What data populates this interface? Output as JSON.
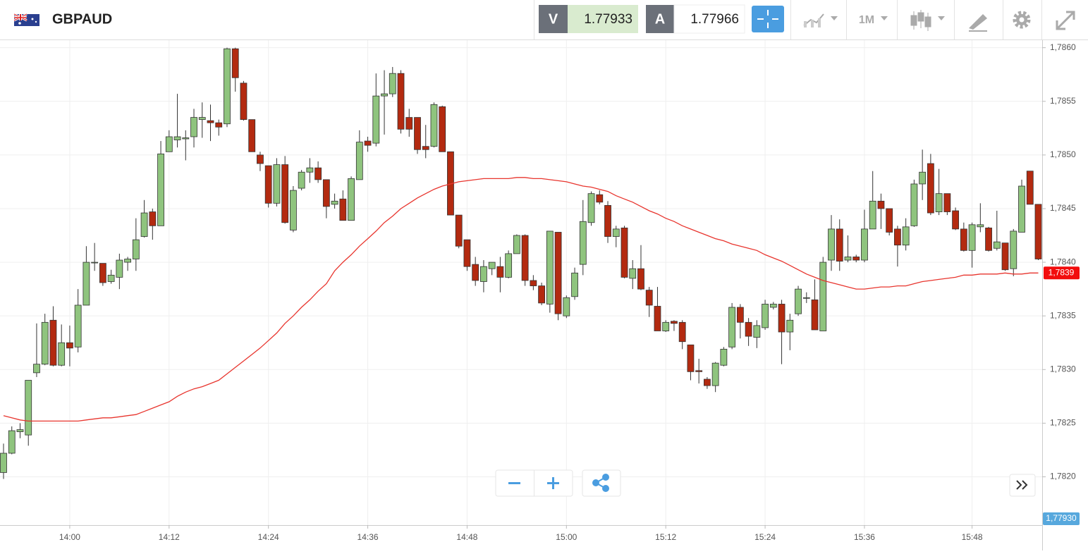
{
  "header": {
    "symbol": "GBPAUD",
    "sell_label": "V",
    "sell_price": "1.77933",
    "buy_label": "A",
    "buy_price": "1.77966",
    "timeframe": "1M"
  },
  "chart_data": {
    "type": "candlestick",
    "categories": [
      null,
      null,
      null,
      null,
      null,
      null,
      null,
      null,
      "14:00",
      null,
      null,
      null,
      null,
      null,
      null,
      null,
      null,
      null,
      null,
      null,
      "14:12",
      null,
      null,
      null,
      null,
      null,
      null,
      null,
      null,
      null,
      null,
      null,
      "14:24",
      null,
      null,
      null,
      null,
      null,
      null,
      null,
      null,
      null,
      null,
      null,
      "14:36",
      null,
      null,
      null,
      null,
      null,
      null,
      null,
      null,
      null,
      null,
      null,
      "14:48",
      null,
      null,
      null,
      null,
      null,
      null,
      null,
      null,
      null,
      null,
      null,
      "15:00",
      null,
      null,
      null,
      null,
      null,
      null,
      null,
      null,
      null,
      null,
      null,
      "15:12",
      null,
      null,
      null,
      null,
      null,
      null,
      null,
      null,
      null,
      null,
      null,
      "15:24",
      null,
      null,
      null,
      null,
      null,
      null,
      null,
      null,
      null,
      null,
      null,
      "15:36",
      null,
      null,
      null,
      null,
      null,
      null,
      null,
      null,
      null,
      null,
      null,
      null,
      "15:48",
      null,
      null,
      null,
      null,
      null,
      null,
      null,
      null
    ],
    "open": [
      1.78204,
      1.78222,
      1.78242,
      1.78239,
      1.78297,
      1.78305,
      1.78346,
      1.78304,
      1.78325,
      1.78321,
      1.7836,
      1.784,
      1.78399,
      1.78382,
      1.78386,
      1.784,
      1.78403,
      1.78424,
      1.78447,
      1.78434,
      1.78503,
      1.78514,
      1.78515,
      1.78517,
      1.78533,
      1.78532,
      1.7853,
      1.78529,
      1.78599,
      1.78567,
      1.78533,
      1.785,
      1.7849,
      1.78455,
      1.78491,
      1.7843,
      1.78469,
      1.78484,
      1.78488,
      1.78477,
      1.78454,
      1.78459,
      1.78439,
      1.78477,
      1.78513,
      1.78511,
      1.78555,
      1.78557,
      1.78576,
      1.78535,
      1.78535,
      1.78508,
      1.78508,
      1.78545,
      1.78503,
      1.78444,
      1.78421,
      1.78398,
      1.78382,
      1.78394,
      1.78396,
      1.78386,
      1.78408,
      1.78425,
      1.78383,
      1.78378,
      1.78361,
      1.78428,
      1.7835,
      1.78368,
      1.78398,
      1.78437,
      1.78463,
      1.78453,
      1.78424,
      1.78432,
      1.78385,
      1.78394,
      1.78374,
      1.78359,
      1.78336,
      1.78345,
      1.78344,
      1.78323,
      1.78299,
      1.78291,
      1.78285,
      1.78304,
      1.78321,
      1.78358,
      1.78344,
      1.7833,
      1.78339,
      1.78358,
      1.78361,
      1.78335,
      1.78352,
      1.78367,
      1.78365,
      1.78336,
      1.78402,
      1.78431,
      1.78402,
      1.78405,
      1.78402,
      1.78431,
      1.78457,
      1.7845,
      1.78431,
      1.78416,
      1.78434,
      1.78473,
      1.78492,
      1.78447,
      1.78464,
      1.78448,
      1.78431,
      1.78411,
      1.78433,
      1.78432,
      1.78413,
      1.78418,
      1.78394,
      1.78428,
      1.78485,
      1.78454
    ],
    "high": [
      1.78231,
      1.78247,
      1.7825,
      1.7829,
      1.78343,
      1.78352,
      1.78359,
      1.78342,
      1.78341,
      1.78375,
      1.78415,
      1.78418,
      1.78399,
      1.78393,
      1.78408,
      1.78405,
      1.78441,
      1.78458,
      1.7845,
      1.78513,
      1.78523,
      1.78557,
      1.78523,
      1.78543,
      1.78549,
      1.78547,
      1.78533,
      1.786,
      1.786,
      1.78569,
      1.78533,
      1.78503,
      1.7849,
      1.78497,
      1.78499,
      1.78471,
      1.78486,
      1.78497,
      1.78494,
      1.78477,
      1.78464,
      1.78467,
      1.7848,
      1.78523,
      1.78517,
      1.78576,
      1.78579,
      1.78582,
      1.78579,
      1.78543,
      1.78535,
      1.78528,
      1.78549,
      1.78546,
      1.78503,
      1.78444,
      1.78421,
      1.78405,
      1.78402,
      1.784,
      1.78405,
      1.78411,
      1.78426,
      1.78426,
      1.78388,
      1.78381,
      1.78429,
      1.78428,
      1.78369,
      1.78395,
      1.78458,
      1.78466,
      1.78467,
      1.78457,
      1.78434,
      1.78434,
      1.78402,
      1.78416,
      1.78377,
      1.78377,
      1.78346,
      1.78346,
      1.78346,
      1.78323,
      1.7831,
      1.78293,
      1.78307,
      1.78321,
      1.78362,
      1.78361,
      1.78348,
      1.78346,
      1.78365,
      1.78363,
      1.78365,
      1.78352,
      1.78378,
      1.78372,
      1.78384,
      1.78405,
      1.78444,
      1.7844,
      1.78425,
      1.78407,
      1.78449,
      1.78485,
      1.78464,
      1.7845,
      1.78434,
      1.78441,
      1.78477,
      1.78505,
      1.78501,
      1.78487,
      1.78464,
      1.78451,
      1.78437,
      1.78437,
      1.78455,
      1.78433,
      1.78448,
      1.78418,
      1.78431,
      1.78477,
      1.78485,
      1.78454
    ],
    "low": [
      1.78198,
      1.78221,
      1.78236,
      1.78229,
      1.78293,
      1.78304,
      1.78303,
      1.78303,
      1.78303,
      1.78316,
      1.7836,
      1.78392,
      1.78378,
      1.7838,
      1.78375,
      1.78392,
      1.78392,
      1.78423,
      1.78421,
      1.78434,
      1.78503,
      1.78507,
      1.78495,
      1.78507,
      1.78516,
      1.78513,
      1.78518,
      1.78526,
      1.78559,
      1.78532,
      1.78503,
      1.78485,
      1.78451,
      1.78452,
      1.78436,
      1.78428,
      1.78467,
      1.78474,
      1.78474,
      1.78441,
      1.7845,
      1.78439,
      1.78439,
      1.78477,
      1.78503,
      1.78508,
      1.78519,
      1.78554,
      1.7852,
      1.78517,
      1.78501,
      1.78497,
      1.78507,
      1.78503,
      1.78444,
      1.78413,
      1.78392,
      1.78378,
      1.78372,
      1.78388,
      1.78372,
      1.78385,
      1.78408,
      1.78378,
      1.78374,
      1.7836,
      1.78353,
      1.78346,
      1.78348,
      1.78365,
      1.78388,
      1.78434,
      1.78454,
      1.78418,
      1.78414,
      1.78385,
      1.78375,
      1.78374,
      1.78349,
      1.78336,
      1.78335,
      1.78336,
      1.78319,
      1.7829,
      1.78287,
      1.78282,
      1.78279,
      1.78303,
      1.78319,
      1.78329,
      1.78322,
      1.7832,
      1.78337,
      1.78356,
      1.78305,
      1.78318,
      1.7835,
      1.78362,
      1.78337,
      1.78336,
      1.78392,
      1.78392,
      1.784,
      1.784,
      1.784,
      1.78431,
      1.78431,
      1.78425,
      1.78396,
      1.78411,
      1.78433,
      1.78458,
      1.78444,
      1.78444,
      1.78444,
      1.7843,
      1.7841,
      1.78395,
      1.78428,
      1.7841,
      1.78411,
      1.78392,
      1.78387,
      1.78428,
      1.78454,
      1.78402
    ],
    "close": [
      1.78222,
      1.78243,
      1.78244,
      1.7829,
      1.78305,
      1.78344,
      1.78304,
      1.78325,
      1.7832,
      1.7836,
      1.784,
      1.784,
      1.78381,
      1.78388,
      1.78402,
      1.78403,
      1.78421,
      1.78446,
      1.78434,
      1.78501,
      1.78517,
      1.78517,
      1.78516,
      1.78535,
      1.78535,
      1.7853,
      1.78526,
      1.78599,
      1.78572,
      1.78533,
      1.78503,
      1.78492,
      1.78455,
      1.78491,
      1.78437,
      1.78467,
      1.78484,
      1.78488,
      1.78477,
      1.78452,
      1.78457,
      1.78439,
      1.78478,
      1.78512,
      1.78509,
      1.78555,
      1.78557,
      1.78576,
      1.78524,
      1.78524,
      1.78505,
      1.78505,
      1.78547,
      1.78503,
      1.78444,
      1.78415,
      1.78396,
      1.78383,
      1.78396,
      1.784,
      1.78386,
      1.78408,
      1.78425,
      1.78383,
      1.78378,
      1.78362,
      1.78429,
      1.78352,
      1.78367,
      1.7839,
      1.78438,
      1.78464,
      1.78456,
      1.78424,
      1.78431,
      1.78386,
      1.78394,
      1.78375,
      1.7836,
      1.78336,
      1.78344,
      1.78343,
      1.78326,
      1.78298,
      1.78298,
      1.78285,
      1.78306,
      1.78319,
      1.78358,
      1.78344,
      1.78331,
      1.78341,
      1.78361,
      1.78361,
      1.78335,
      1.78346,
      1.78375,
      1.78367,
      1.78337,
      1.784,
      1.78431,
      1.78401,
      1.78405,
      1.78402,
      1.78431,
      1.78457,
      1.7845,
      1.78428,
      1.78416,
      1.78433,
      1.78473,
      1.78484,
      1.78446,
      1.78464,
      1.78447,
      1.78431,
      1.78411,
      1.78435,
      1.78435,
      1.78411,
      1.78419,
      1.78393,
      1.78429,
      1.78471,
      1.78454,
      1.78403
    ],
    "up_color": "#8fc47e",
    "down_color": "#b32a10",
    "ma": {
      "color": "#e8352e",
      "values": [
        1.78257,
        1.78255,
        1.78253,
        1.78252,
        1.78252,
        1.78252,
        1.78252,
        1.78252,
        1.78252,
        1.78252,
        1.78253,
        1.78254,
        1.78255,
        1.78255,
        1.78256,
        1.78257,
        1.78258,
        1.78261,
        1.78264,
        1.78267,
        1.7827,
        1.78275,
        1.78279,
        1.78282,
        1.78284,
        1.78287,
        1.7829,
        1.78296,
        1.78302,
        1.78308,
        1.78314,
        1.7832,
        1.78327,
        1.78334,
        1.78343,
        1.7835,
        1.78358,
        1.78365,
        1.78373,
        1.7838,
        1.78392,
        1.784,
        1.78407,
        1.78415,
        1.78422,
        1.78429,
        1.78437,
        1.78443,
        1.7845,
        1.78455,
        1.7846,
        1.78464,
        1.78468,
        1.78471,
        1.78473,
        1.78475,
        1.78476,
        1.78477,
        1.78478,
        1.78478,
        1.78478,
        1.78478,
        1.78479,
        1.78479,
        1.78478,
        1.78478,
        1.78477,
        1.78476,
        1.78475,
        1.78473,
        1.78471,
        1.7847,
        1.78468,
        1.78466,
        1.78462,
        1.78459,
        1.78456,
        1.78452,
        1.78448,
        1.78445,
        1.78441,
        1.78438,
        1.78434,
        1.78431,
        1.78428,
        1.78425,
        1.78422,
        1.7842,
        1.78417,
        1.78415,
        1.78413,
        1.78411,
        1.78407,
        1.78404,
        1.78401,
        1.78397,
        1.78393,
        1.78389,
        1.78386,
        1.78383,
        1.78381,
        1.78379,
        1.78377,
        1.78375,
        1.78375,
        1.78376,
        1.78377,
        1.78377,
        1.78378,
        1.78378,
        1.7838,
        1.78382,
        1.78383,
        1.78384,
        1.78385,
        1.78386,
        1.78388,
        1.78388,
        1.78389,
        1.78389,
        1.78389,
        1.7839,
        1.78389,
        1.78389,
        1.7839,
        1.7839
      ],
      "end_label": {
        "value": 1.7839,
        "label": "1,7839"
      }
    },
    "price_tag": "1,77930",
    "ylim": [
      1.78155,
      1.78607
    ],
    "yticks": [
      {
        "value": 1.782,
        "label": "1,7820"
      },
      {
        "value": 1.7825,
        "label": "1,7825"
      },
      {
        "value": 1.783,
        "label": "1,7830"
      },
      {
        "value": 1.7835,
        "label": "1,7835"
      },
      {
        "value": 1.784,
        "label": "1,7840"
      },
      {
        "value": 1.7845,
        "label": "1,7845"
      },
      {
        "value": 1.785,
        "label": "1,7850"
      },
      {
        "value": 1.7855,
        "label": "1,7855"
      },
      {
        "value": 1.786,
        "label": "1,7860"
      }
    ],
    "grid": true
  }
}
